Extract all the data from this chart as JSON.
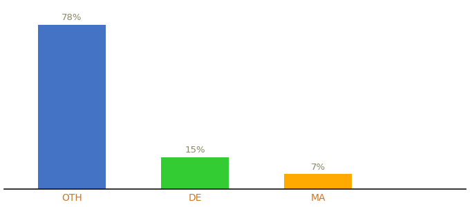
{
  "categories": [
    "OTH",
    "DE",
    "MA"
  ],
  "values": [
    78,
    15,
    7
  ],
  "bar_colors": [
    "#4472c4",
    "#33cc33",
    "#ffaa00"
  ],
  "labels": [
    "78%",
    "15%",
    "7%"
  ],
  "ylim": [
    0,
    88
  ],
  "background_color": "#ffffff",
  "label_color": "#888866",
  "xlabel_color": "#cc7722"
}
